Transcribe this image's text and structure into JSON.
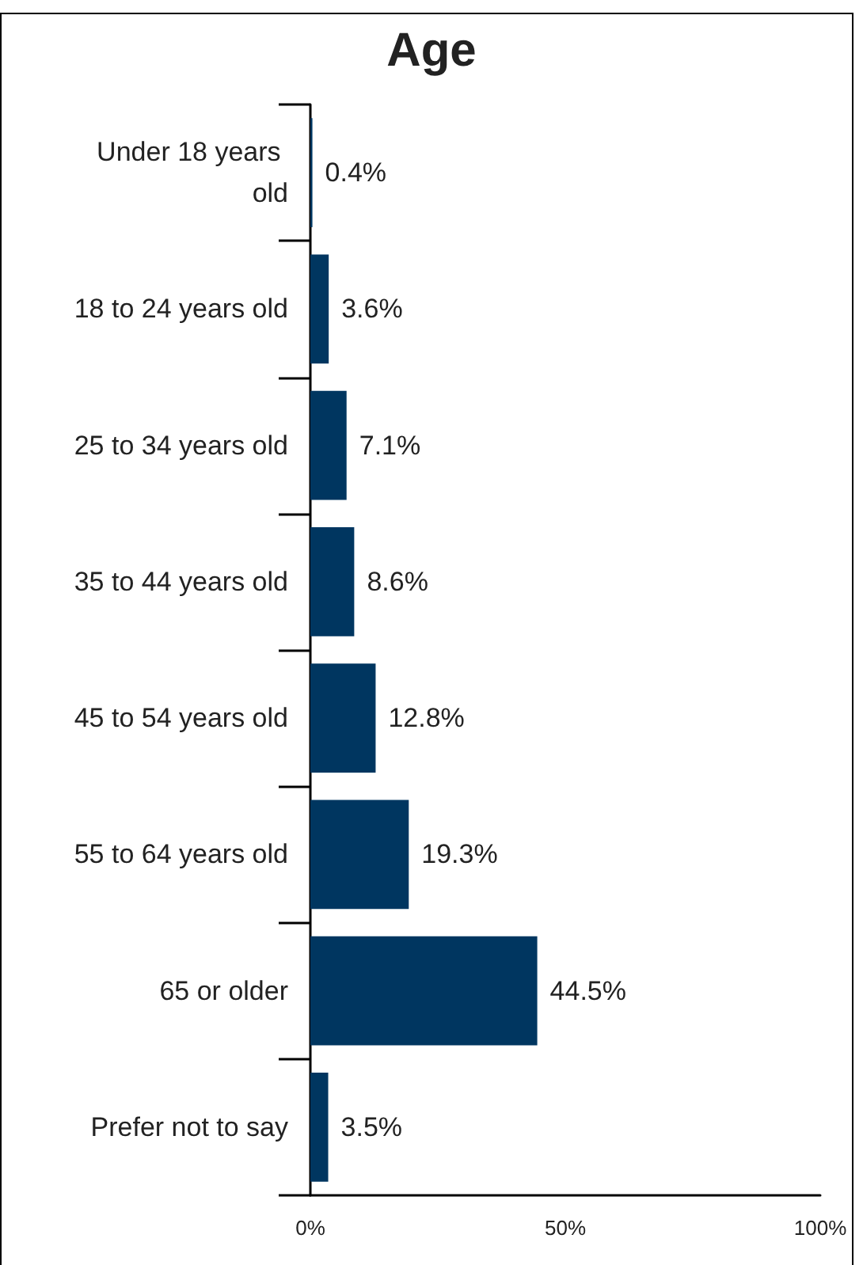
{
  "chart_data": {
    "type": "bar",
    "orientation": "horizontal",
    "title": "Age",
    "categories": [
      "Under 18 years old",
      "18 to 24 years old",
      "25 to 34 years old",
      "35 to 44 years old",
      "45 to 54 years old",
      "55 to 64 years old",
      "65 or older",
      "Prefer not to say"
    ],
    "values": [
      0.4,
      3.6,
      7.1,
      8.6,
      12.8,
      19.3,
      44.5,
      3.5
    ],
    "value_labels": [
      "0.4%",
      "3.6%",
      "7.1%",
      "8.6%",
      "12.8%",
      "19.3%",
      "44.5%",
      "3.5%"
    ],
    "color": "#003660",
    "xlim": [
      0,
      100
    ],
    "xticks": [
      {
        "value": 0,
        "label": "0%"
      },
      {
        "value": 50,
        "label": "50%"
      },
      {
        "value": 100,
        "label": "100%"
      }
    ]
  }
}
